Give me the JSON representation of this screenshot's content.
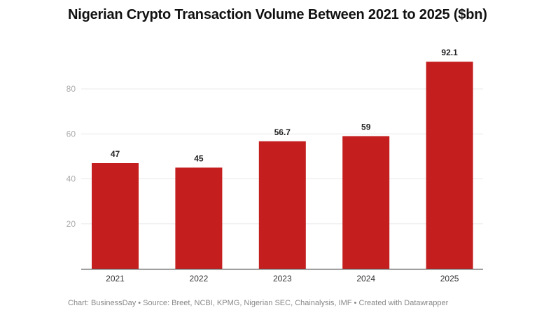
{
  "chart_data": {
    "type": "bar",
    "title": "Nigerian Crypto Transaction Volume Between 2021 to 2025 ($bn)",
    "categories": [
      "2021",
      "2022",
      "2023",
      "2024",
      "2025"
    ],
    "values": [
      47,
      45,
      56.7,
      59,
      92.1
    ],
    "data_labels": [
      "47",
      "45",
      "56.7",
      "59",
      "92.1"
    ],
    "xlabel": "",
    "ylabel": "",
    "ylim": [
      0,
      100
    ],
    "yticks": [
      20,
      40,
      60,
      80
    ],
    "grid": true,
    "bar_color": "#c41e1e"
  },
  "footer": "Chart: BusinessDay • Source: Breet, NCBI, KPMG, Nigerian SEC, Chainalysis, IMF • Created with Datawrapper"
}
